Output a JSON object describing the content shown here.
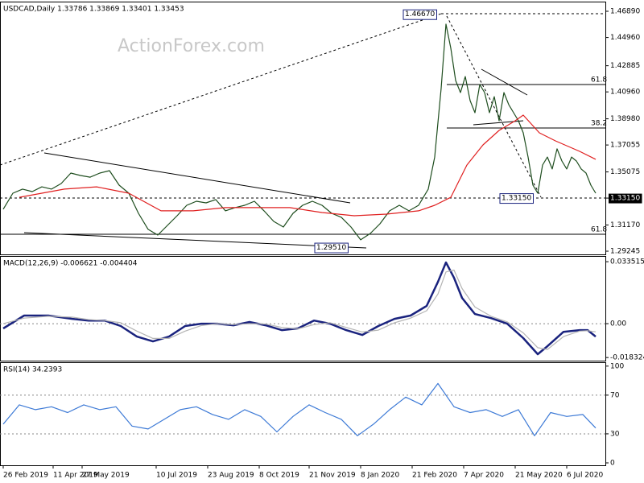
{
  "chart_data": [
    {
      "type": "line",
      "title": "USDCAD,Daily  1.33786 1.33869 1.33401 1.33453",
      "watermark": "ActionForex.com",
      "xlim": [
        0,
        376
      ],
      "ylim": [
        1.2901,
        1.476
      ],
      "yticks": [
        {
          "value": 1.4689,
          "label": "1.46890"
        },
        {
          "value": 1.4496,
          "label": "1.44960"
        },
        1.42885,
        {
          "value": 1.4096,
          "label": "1.40960"
        },
        {
          "value": 1.3898,
          "label": "1.38980"
        },
        1.37055,
        1.35075,
        {
          "value": 1.3315,
          "label": "1.33150"
        },
        {
          "value": 1.3117,
          "label": "1.31170"
        },
        1.29245
      ],
      "grid": false,
      "series": [
        {
          "color": "#1e4d1e",
          "x": [
            2,
            8,
            14,
            20,
            26,
            32,
            38,
            44,
            50,
            56,
            62,
            68,
            74,
            80,
            86,
            92,
            98,
            104,
            110,
            116,
            122,
            128,
            134,
            140,
            146,
            152,
            158,
            164,
            170,
            176,
            182,
            188,
            194,
            200,
            206,
            212,
            218,
            224,
            230,
            236,
            242,
            248,
            254,
            260,
            266,
            270,
            274,
            277,
            280,
            283,
            286,
            289,
            292,
            295,
            298,
            301,
            304,
            307,
            310,
            313,
            316,
            319,
            322,
            325,
            328,
            331,
            334,
            337,
            340,
            343,
            346,
            349,
            352,
            355,
            358,
            361,
            364,
            367,
            370
          ],
          "values": [
            1.3233,
            1.3351,
            1.3381,
            1.3363,
            1.3398,
            1.3381,
            1.3422,
            1.3499,
            1.3481,
            1.3469,
            1.3499,
            1.3517,
            1.341,
            1.3351,
            1.3203,
            1.3085,
            1.3043,
            1.3114,
            1.3185,
            1.3262,
            1.3292,
            1.328,
            1.3304,
            1.3221,
            1.3245,
            1.3262,
            1.3292,
            1.3221,
            1.3144,
            1.3102,
            1.3203,
            1.3262,
            1.3292,
            1.3262,
            1.3203,
            1.3174,
            1.3102,
            1.3008,
            1.3055,
            1.3126,
            1.3221,
            1.3262,
            1.3221,
            1.3262,
            1.3381,
            1.3617,
            1.4121,
            1.4594,
            1.4417,
            1.418,
            1.4091,
            1.4209,
            1.4032,
            1.3943,
            1.415,
            1.4091,
            1.3943,
            1.4061,
            1.3884,
            1.4091,
            1.4002,
            1.3943,
            1.3884,
            1.3795,
            1.3617,
            1.341,
            1.3351,
            1.3558,
            1.3617,
            1.3529,
            1.3677,
            1.3588,
            1.3529,
            1.3617,
            1.3588,
            1.3529,
            1.3499,
            1.341,
            1.3351
          ]
        },
        {
          "color": "#e02020",
          "x": [
            12,
            40,
            60,
            80,
            100,
            120,
            140,
            160,
            180,
            200,
            220,
            240,
            260,
            270,
            280,
            290,
            300,
            310,
            320,
            325,
            335,
            345,
            360,
            370
          ],
          "values": [
            1.3321,
            1.3381,
            1.3398,
            1.3351,
            1.3221,
            1.3221,
            1.3245,
            1.3245,
            1.3245,
            1.3209,
            1.3185,
            1.3197,
            1.3221,
            1.3262,
            1.3321,
            1.3558,
            1.3706,
            1.3813,
            1.3884,
            1.3925,
            1.3795,
            1.3736,
            1.3659,
            1.36
          ]
        }
      ],
      "annotations": [
        {
          "label": "1.46670",
          "value": 1.4667
        },
        {
          "label": "1.33150",
          "value": 1.3315
        },
        {
          "label": "1.29510",
          "value": 1.2951
        },
        {
          "label": "61.8",
          "value": 1.415
        },
        {
          "label": "38.2",
          "value": 1.3831
        },
        {
          "label": "61.8",
          "value": 1.3049
        }
      ]
    },
    {
      "type": "line",
      "title": "MACD(12,26,9) -0.006621 -0.004404",
      "xlim": [
        0,
        376
      ],
      "ylim": [
        -0.02,
        0.0366
      ],
      "yticks": [
        0.033515,
        {
          "value": 0,
          "label": "0.00"
        },
        -0.018324
      ],
      "grid": true,
      "series": [
        {
          "color": "#1a237e",
          "x": [
            2,
            15,
            30,
            45,
            55,
            65,
            75,
            85,
            95,
            105,
            115,
            125,
            135,
            145,
            155,
            165,
            175,
            185,
            195,
            205,
            215,
            225,
            235,
            245,
            255,
            265,
            272,
            277,
            282,
            287,
            295,
            305,
            315,
            325,
            334,
            340,
            350,
            360,
            365,
            370
          ],
          "values": [
            -0.0026,
            0.0044,
            0.0044,
            0.0026,
            0.0017,
            0.0017,
            -0.0013,
            -0.007,
            -0.0096,
            -0.007,
            -0.0013,
            0.0,
            0.0,
            -0.0009,
            0.0009,
            -0.0009,
            -0.0035,
            -0.0026,
            0.0017,
            0.0,
            -0.0035,
            -0.0061,
            -0.0013,
            0.0026,
            0.0044,
            0.0096,
            0.0226,
            0.0331,
            0.0248,
            0.0139,
            0.0052,
            0.003,
            0.0,
            -0.0078,
            -0.0165,
            -0.0122,
            -0.0044,
            -0.0035,
            -0.0035,
            -0.007
          ]
        },
        {
          "color": "#b4b4b4",
          "x": [
            2,
            15,
            30,
            45,
            55,
            65,
            75,
            85,
            95,
            105,
            115,
            125,
            135,
            145,
            155,
            165,
            175,
            185,
            195,
            205,
            215,
            225,
            235,
            245,
            255,
            265,
            272,
            277,
            282,
            287,
            295,
            305,
            315,
            325,
            334,
            340,
            350,
            360,
            365,
            370
          ],
          "values": [
            0.0,
            0.003,
            0.004,
            0.0035,
            0.0022,
            0.0017,
            0.0005,
            -0.004,
            -0.008,
            -0.008,
            -0.004,
            -0.001,
            0.0,
            -0.0005,
            0.0,
            -0.0002,
            -0.002,
            -0.0028,
            -0.0005,
            0.0005,
            -0.002,
            -0.0045,
            -0.0035,
            0.0005,
            0.003,
            0.007,
            0.016,
            0.028,
            0.029,
            0.019,
            0.009,
            0.004,
            0.001,
            -0.005,
            -0.013,
            -0.014,
            -0.007,
            -0.004,
            -0.0038,
            -0.0044
          ]
        }
      ]
    },
    {
      "type": "line",
      "title": "RSI(14) 34.2393",
      "xlim": [
        0,
        376
      ],
      "ylim": [
        -2.5,
        104
      ],
      "yticks": [
        100,
        70,
        30,
        0
      ],
      "grid": true,
      "xticks": [
        {
          "value": 2,
          "label": "26 Feb 2019"
        },
        {
          "value": 33,
          "label": "11 Apr 2019"
        },
        {
          "value": 51,
          "label": "27 May 2019"
        },
        {
          "value": 97,
          "label": "10 Jul 2019"
        },
        {
          "value": 129,
          "label": "23 Aug 2019"
        },
        {
          "value": 161,
          "label": "8 Oct 2019"
        },
        {
          "value": 192,
          "label": "21 Nov 2019"
        },
        {
          "value": 224,
          "label": "8 Jan 2020"
        },
        {
          "value": 256,
          "label": "21 Feb 2020"
        },
        {
          "value": 288,
          "label": "7 Apr 2020"
        },
        {
          "value": 320,
          "label": "21 May 2020"
        },
        {
          "value": 352,
          "label": "6 Jul 2020"
        }
      ],
      "series": [
        {
          "color": "#3d7ad6",
          "x": [
            2,
            12,
            22,
            32,
            42,
            52,
            62,
            72,
            82,
            92,
            102,
            112,
            122,
            132,
            142,
            152,
            162,
            172,
            182,
            192,
            202,
            212,
            222,
            232,
            242,
            252,
            262,
            272,
            282,
            292,
            302,
            312,
            322,
            332,
            342,
            352,
            362,
            370
          ],
          "values": [
            40,
            60,
            55,
            58,
            52,
            60,
            55,
            58,
            38,
            35,
            45,
            55,
            58,
            50,
            45,
            55,
            48,
            32,
            48,
            60,
            52,
            45,
            28,
            40,
            55,
            68,
            60,
            82,
            58,
            52,
            55,
            48,
            55,
            28,
            52,
            48,
            50,
            36
          ]
        }
      ]
    }
  ]
}
